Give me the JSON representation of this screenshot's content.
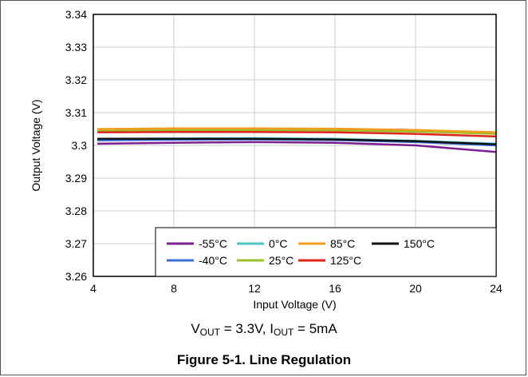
{
  "chart_data": {
    "type": "line",
    "title": "",
    "xlabel": "Input Voltage (V)",
    "ylabel": "Output Voltage (V)",
    "xlim": [
      4,
      24
    ],
    "ylim": [
      3.26,
      3.34
    ],
    "xticks": [
      4,
      8,
      12,
      16,
      20,
      24
    ],
    "xtick_labels": [
      "4",
      "8",
      "12",
      "16",
      "20",
      "24"
    ],
    "yticks": [
      3.26,
      3.27,
      3.28,
      3.29,
      3.3,
      3.31,
      3.32,
      3.33,
      3.34
    ],
    "ytick_labels": [
      "3.26",
      "3.27",
      "3.28",
      "3.29",
      "3.3",
      "3.31",
      "3.32",
      "3.33",
      "3.34"
    ],
    "grid": true,
    "legend_position": "bottom-right",
    "x": [
      4.2,
      8,
      12,
      16,
      20,
      24
    ],
    "series": [
      {
        "name": "-55°C",
        "color": "#7B1F8E",
        "values": [
          3.3005,
          3.3008,
          3.301,
          3.3008,
          3.3,
          3.298
        ]
      },
      {
        "name": "-40°C",
        "color": "#3A6FD8",
        "values": [
          3.3015,
          3.3017,
          3.3018,
          3.3016,
          3.301,
          3.3
        ]
      },
      {
        "name": "0°C",
        "color": "#4CC4C4",
        "values": [
          3.302,
          3.3021,
          3.3022,
          3.302,
          3.3014,
          3.3005
        ]
      },
      {
        "name": "25°C",
        "color": "#9BBF2A",
        "values": [
          3.3045,
          3.3047,
          3.3047,
          3.3046,
          3.3042,
          3.3035
        ]
      },
      {
        "name": "85°C",
        "color": "#F39C1F",
        "values": [
          3.305,
          3.3052,
          3.3052,
          3.3051,
          3.3047,
          3.304
        ]
      },
      {
        "name": "125°C",
        "color": "#E2231A",
        "values": [
          3.304,
          3.3041,
          3.3041,
          3.304,
          3.3035,
          3.3027
        ]
      },
      {
        "name": "150°C",
        "color": "#111111",
        "values": [
          3.302,
          3.302,
          3.302,
          3.3018,
          3.3013,
          3.3003
        ]
      }
    ],
    "legend_order": [
      "-55°C",
      "0°C",
      "85°C",
      "150°C",
      "-40°C",
      "25°C",
      "125°C"
    ],
    "annotation": "VOUT = 3.3V, IOUT = 5mA"
  },
  "condition": {
    "v_main": "V",
    "v_sub": "OUT",
    "v_rest": " = 3.3V, ",
    "i_main": "I",
    "i_sub": "OUT",
    "i_rest": " = 5mA"
  },
  "caption": "Figure 5-1. Line Regulation"
}
